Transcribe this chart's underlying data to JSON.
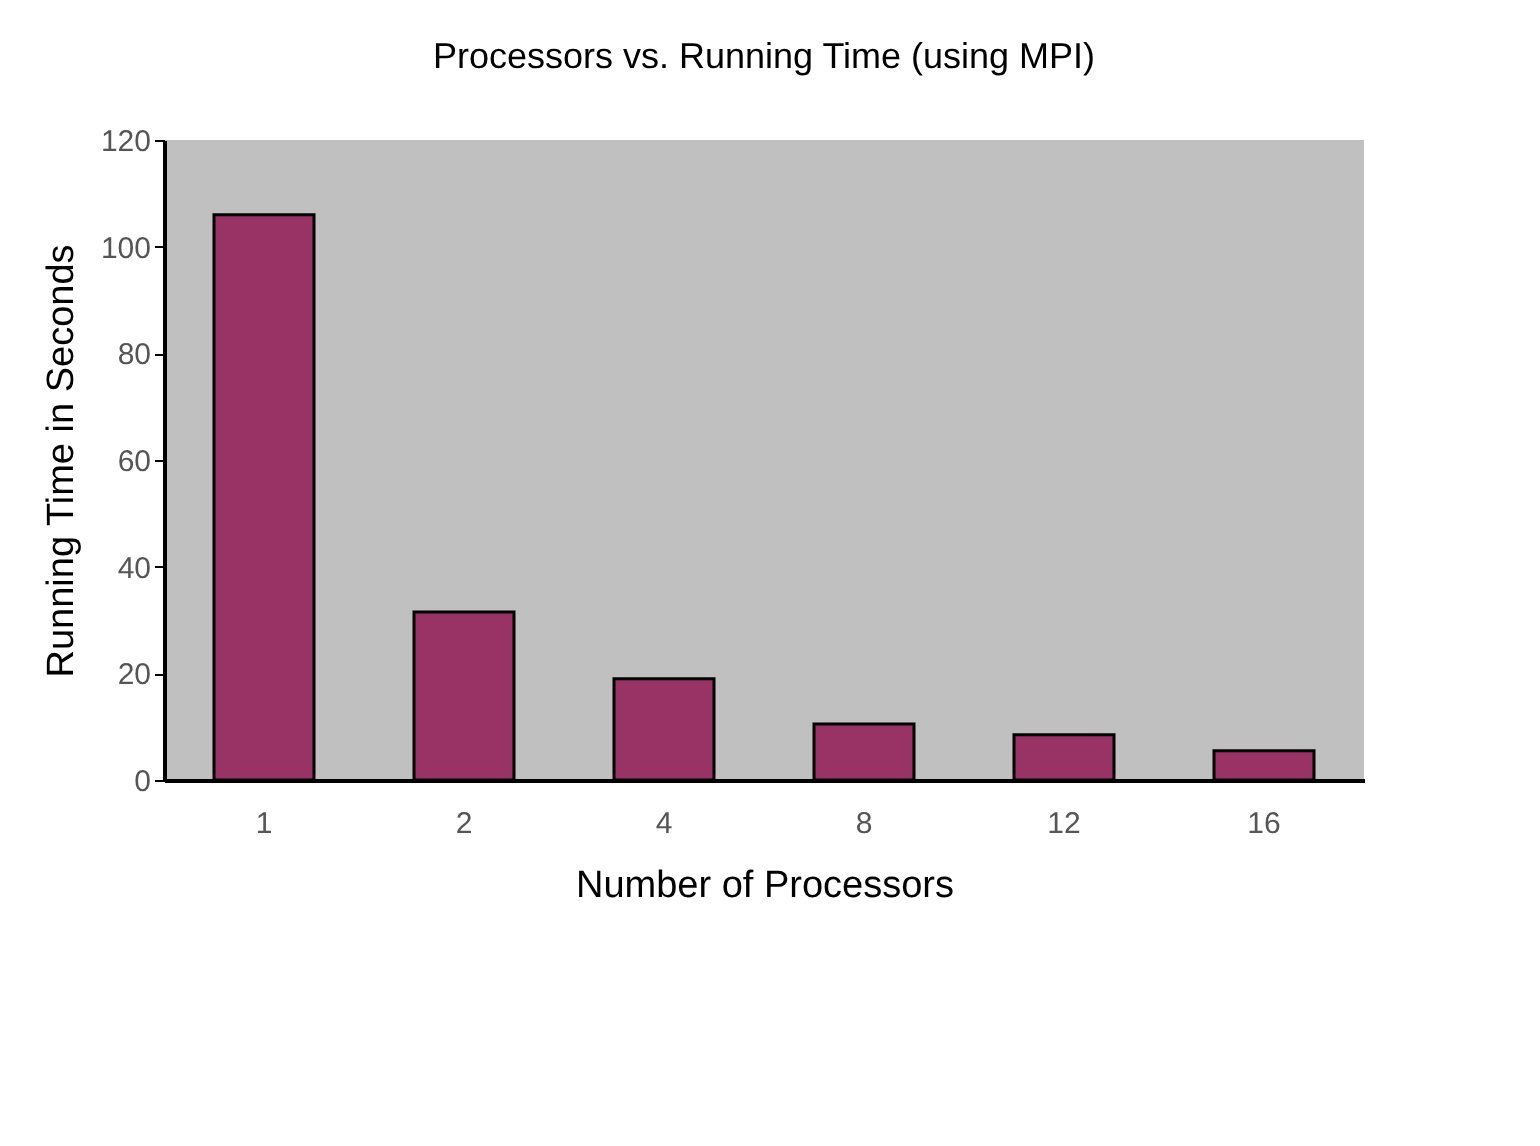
{
  "chart_data": {
    "type": "bar",
    "title": "Processors vs. Running Time (using MPI)",
    "xlabel": "Number of Processors",
    "ylabel": "Running Time in Seconds",
    "categories": [
      "1",
      "2",
      "4",
      "8",
      "12",
      "16"
    ],
    "values": [
      106,
      31.5,
      19,
      10.5,
      8.5,
      5.5
    ],
    "color": "#993366",
    "ylim": [
      0,
      120
    ],
    "yticks": [
      0,
      20,
      40,
      60,
      80,
      100,
      120
    ],
    "grid": false
  }
}
